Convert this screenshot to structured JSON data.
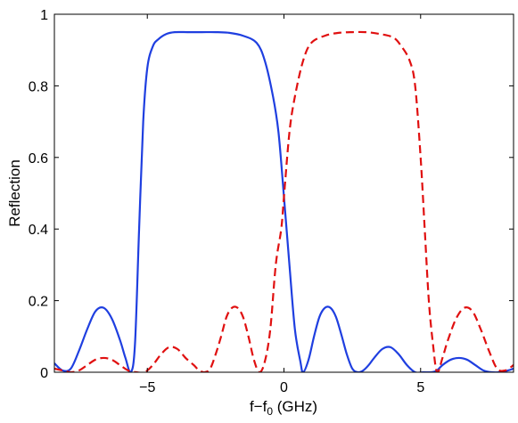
{
  "chart_data": {
    "type": "line",
    "title": "",
    "xlabel_main": "f−f",
    "xlabel_sub": "0",
    "xlabel_tail": " (GHz)",
    "ylabel": "Reflection",
    "xlim": [
      -8.4,
      8.4
    ],
    "ylim": [
      0,
      1
    ],
    "xticks": [
      -5,
      0,
      5
    ],
    "xtick_labels": [
      "−5",
      "0",
      "5"
    ],
    "yticks": [
      0,
      0.2,
      0.4,
      0.6,
      0.8,
      1
    ],
    "ytick_labels": [
      "0",
      "0.2",
      "0.4",
      "0.6",
      "0.8",
      "1"
    ],
    "grid": false,
    "series": [
      {
        "style": "solid",
        "color": "#1f3fe0",
        "x": [
          -8.4,
          -8.1,
          -7.8,
          -7.5,
          -7.2,
          -6.9,
          -6.6,
          -6.3,
          -6.0,
          -5.8,
          -5.6,
          -5.45,
          -5.3,
          -5.15,
          -5.0,
          -4.8,
          -4.6,
          -4.3,
          -4.0,
          -3.5,
          -3.0,
          -2.5,
          -2.0,
          -1.5,
          -1.0,
          -0.7,
          -0.4,
          -0.2,
          0.0,
          0.2,
          0.4,
          0.6,
          0.7,
          0.9,
          1.1,
          1.3,
          1.5,
          1.7,
          1.9,
          2.1,
          2.3,
          2.5,
          2.7,
          2.9,
          3.1,
          3.3,
          3.6,
          3.9,
          4.2,
          4.5,
          4.8,
          5.1,
          5.4,
          5.6,
          5.8,
          6.1,
          6.4,
          6.7,
          7.0,
          7.3,
          7.6,
          7.9,
          8.2,
          8.4
        ],
        "y": [
          0.025,
          0.005,
          0.01,
          0.06,
          0.12,
          0.17,
          0.18,
          0.15,
          0.09,
          0.04,
          0.0,
          0.08,
          0.4,
          0.7,
          0.85,
          0.91,
          0.93,
          0.945,
          0.95,
          0.95,
          0.95,
          0.95,
          0.948,
          0.94,
          0.92,
          0.87,
          0.77,
          0.67,
          0.49,
          0.3,
          0.12,
          0.03,
          0.0,
          0.035,
          0.1,
          0.155,
          0.18,
          0.18,
          0.155,
          0.105,
          0.05,
          0.01,
          0.0,
          0.005,
          0.02,
          0.04,
          0.065,
          0.07,
          0.05,
          0.02,
          0.0,
          0.0,
          0.0,
          0.005,
          0.02,
          0.035,
          0.04,
          0.035,
          0.02,
          0.005,
          0.0,
          0.0,
          0.005,
          0.01
        ]
      },
      {
        "style": "dashed",
        "color": "#e01010",
        "x": [
          -8.4,
          -8.1,
          -7.8,
          -7.5,
          -7.2,
          -6.9,
          -6.6,
          -6.3,
          -6.0,
          -5.7,
          -5.4,
          -5.1,
          -4.8,
          -4.5,
          -4.2,
          -3.9,
          -3.6,
          -3.3,
          -3.1,
          -2.9,
          -2.7,
          -2.5,
          -2.3,
          -2.1,
          -1.9,
          -1.7,
          -1.5,
          -1.3,
          -1.1,
          -0.9,
          -0.7,
          -0.5,
          -0.3,
          -0.1,
          0.0,
          0.2,
          0.4,
          0.7,
          1.0,
          1.5,
          2.0,
          2.5,
          3.0,
          3.5,
          4.0,
          4.3,
          4.6,
          4.8,
          5.0,
          5.15,
          5.3,
          5.45,
          5.6,
          5.8,
          6.0,
          6.3,
          6.6,
          6.9,
          7.2,
          7.5,
          7.8,
          8.1,
          8.4
        ],
        "y": [
          0.01,
          0.005,
          0.0,
          0.005,
          0.02,
          0.035,
          0.04,
          0.035,
          0.02,
          0.005,
          0.0,
          0.0,
          0.02,
          0.05,
          0.07,
          0.065,
          0.04,
          0.02,
          0.005,
          0.0,
          0.01,
          0.05,
          0.1,
          0.155,
          0.18,
          0.18,
          0.155,
          0.1,
          0.035,
          0.0,
          0.03,
          0.12,
          0.3,
          0.4,
          0.49,
          0.67,
          0.77,
          0.87,
          0.92,
          0.94,
          0.948,
          0.95,
          0.95,
          0.945,
          0.935,
          0.91,
          0.87,
          0.8,
          0.6,
          0.4,
          0.2,
          0.08,
          0.0,
          0.04,
          0.09,
          0.15,
          0.18,
          0.17,
          0.12,
          0.06,
          0.01,
          0.005,
          0.02
        ]
      }
    ]
  }
}
